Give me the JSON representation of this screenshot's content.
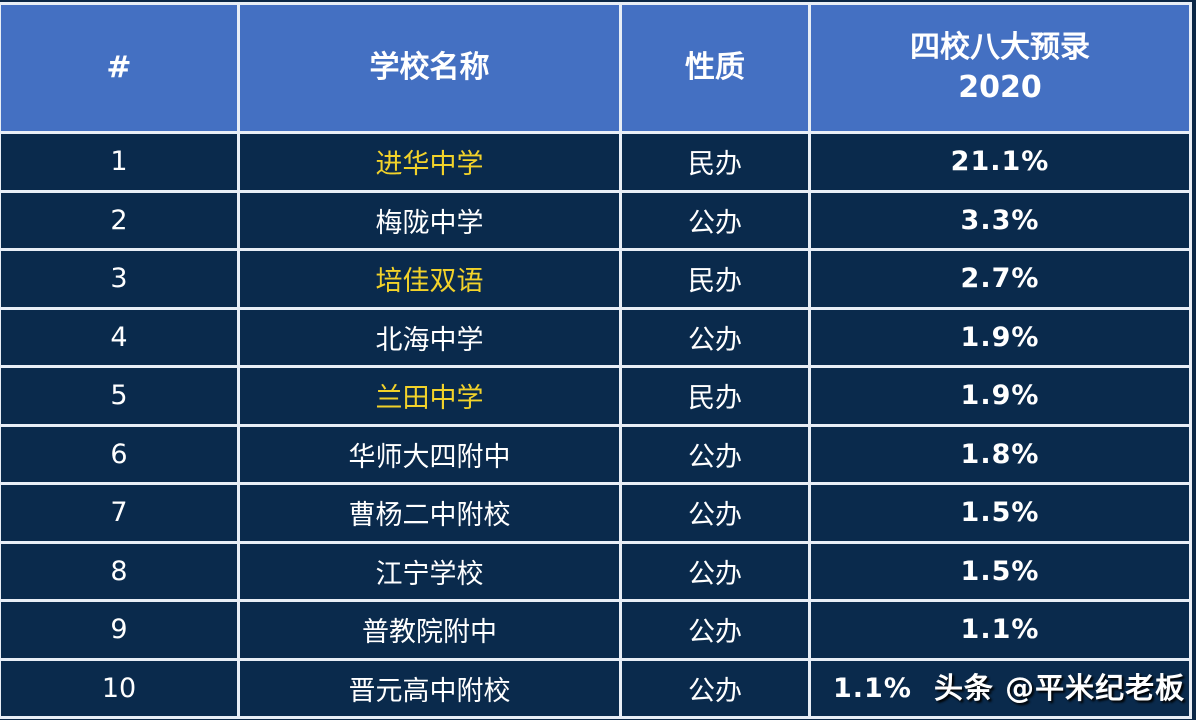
{
  "colors": {
    "header_bg": "#4470c2",
    "row_bg": "#0a2a4c",
    "highlight_text": "#f2d22a",
    "text": "#ffffff"
  },
  "headers": [
    "#",
    "学校名称",
    "性质",
    "四校八大预录",
    "2020"
  ],
  "rows": [
    {
      "rank": "1",
      "name": "进华中学",
      "type": "民办",
      "rate": "21.1%",
      "highlight": true
    },
    {
      "rank": "2",
      "name": "梅陇中学",
      "type": "公办",
      "rate": "3.3%",
      "highlight": false
    },
    {
      "rank": "3",
      "name": "培佳双语",
      "type": "民办",
      "rate": "2.7%",
      "highlight": true
    },
    {
      "rank": "4",
      "name": "北海中学",
      "type": "公办",
      "rate": "1.9%",
      "highlight": false
    },
    {
      "rank": "5",
      "name": "兰田中学",
      "type": "民办",
      "rate": "1.9%",
      "highlight": true
    },
    {
      "rank": "6",
      "name": "华师大四附中",
      "type": "公办",
      "rate": "1.8%",
      "highlight": false
    },
    {
      "rank": "7",
      "name": "曹杨二中附校",
      "type": "公办",
      "rate": "1.5%",
      "highlight": false
    },
    {
      "rank": "8",
      "name": "江宁学校",
      "type": "公办",
      "rate": "1.5%",
      "highlight": false
    },
    {
      "rank": "9",
      "name": "普教院附中",
      "type": "公办",
      "rate": "1.1%",
      "highlight": false
    },
    {
      "rank": "10",
      "name": "晋元高中附校",
      "type": "公办",
      "rate": "1.1%",
      "highlight": false
    }
  ],
  "watermark": "头条 @平米纪老板"
}
